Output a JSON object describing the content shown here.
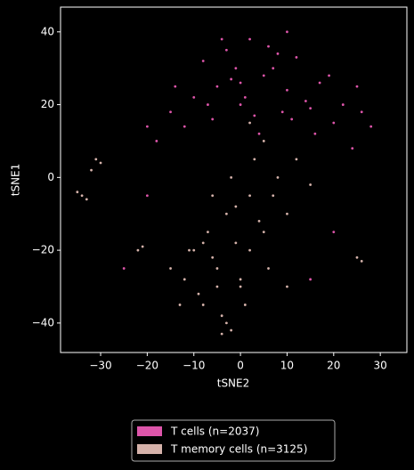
{
  "chart_data": {
    "type": "scatter",
    "xlabel": "tSNE2",
    "ylabel": "tSNE1",
    "xlim": [
      -38.6,
      35.7
    ],
    "ylim": [
      -48.1,
      46.8
    ],
    "xticks": [
      {
        "value": -30,
        "label": "−30"
      },
      {
        "value": -20,
        "label": "−20"
      },
      {
        "value": -10,
        "label": "−10"
      },
      0,
      10,
      20,
      30
    ],
    "yticks": [
      {
        "value": -40,
        "label": "−40"
      },
      {
        "value": -20,
        "label": "−20"
      },
      0,
      20,
      40
    ],
    "legend": "bottom",
    "series": [
      {
        "name": "T cells (n=2037)",
        "color": "#dd55aa",
        "x": [
          -15,
          -10,
          -5,
          0,
          5,
          10,
          15,
          20,
          -8,
          -3,
          2,
          7,
          12,
          17,
          -12,
          -6,
          1,
          4,
          9,
          14,
          22,
          25,
          28,
          -18,
          -20,
          -2,
          3,
          8,
          -7,
          6,
          11,
          -1,
          16,
          19,
          26,
          -14,
          24,
          10,
          -4,
          0,
          20,
          15,
          -25,
          -20
        ],
        "values": [
          18,
          22,
          25,
          20,
          28,
          24,
          19,
          15,
          32,
          35,
          38,
          30,
          33,
          26,
          14,
          16,
          22,
          12,
          18,
          21,
          20,
          25,
          14,
          10,
          14,
          27,
          17,
          34,
          20,
          36,
          16,
          30,
          12,
          28,
          18,
          25,
          8,
          40,
          38,
          26,
          -15,
          -28,
          -25,
          -5
        ]
      },
      {
        "name": "T memory cells (n=3125)",
        "color": "#d5b2aa",
        "x": [
          -10,
          -5,
          0,
          5,
          -8,
          -3,
          2,
          -12,
          -6,
          -1,
          4,
          8,
          -15,
          -9,
          -4,
          1,
          6,
          10,
          -7,
          -2,
          3,
          -11,
          -6,
          0,
          -3,
          2,
          7,
          12,
          -5,
          -13,
          -8,
          15,
          -1,
          5,
          -32,
          -31,
          -30,
          -34,
          -35,
          -33,
          25,
          26,
          -22,
          -21,
          2,
          -4,
          10,
          -2
        ],
        "values": [
          -20,
          -25,
          -30,
          -15,
          -35,
          -10,
          -5,
          -28,
          -22,
          -18,
          -12,
          0,
          -25,
          -32,
          -38,
          -35,
          -25,
          -10,
          -15,
          0,
          5,
          -20,
          -5,
          -28,
          -40,
          -20,
          -5,
          5,
          -30,
          -35,
          -18,
          -2,
          -8,
          10,
          2,
          5,
          4,
          -5,
          -4,
          -6,
          -22,
          -23,
          -20,
          -19,
          15,
          -43,
          -30,
          -42
        ]
      }
    ]
  }
}
